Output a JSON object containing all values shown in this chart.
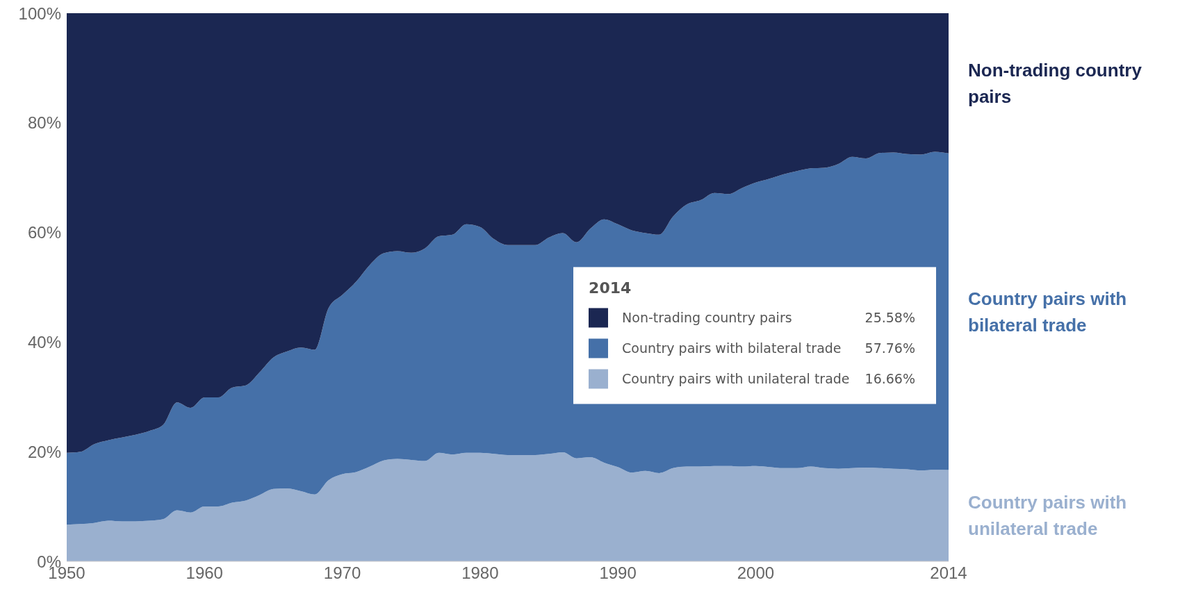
{
  "chart_data": {
    "type": "area",
    "stacked": true,
    "x": [
      1950,
      1951,
      1952,
      1953,
      1954,
      1955,
      1956,
      1957,
      1958,
      1959,
      1960,
      1961,
      1962,
      1963,
      1964,
      1965,
      1966,
      1967,
      1968,
      1969,
      1970,
      1971,
      1972,
      1973,
      1974,
      1975,
      1976,
      1977,
      1978,
      1979,
      1980,
      1981,
      1982,
      1983,
      1984,
      1985,
      1986,
      1987,
      1988,
      1989,
      1990,
      1991,
      1992,
      1993,
      1994,
      1995,
      1996,
      1997,
      1998,
      1999,
      2000,
      2001,
      2002,
      2003,
      2004,
      2005,
      2006,
      2007,
      2008,
      2009,
      2010,
      2011,
      2012,
      2013,
      2014
    ],
    "series": [
      {
        "name": "Country pairs with unilateral trade",
        "color": "#9ab0cf",
        "values": [
          6.7,
          6.8,
          7,
          7.4,
          7.3,
          7.3,
          7.4,
          7.7,
          9.3,
          8.9,
          10,
          10,
          10.7,
          11.1,
          12.1,
          13.2,
          13.3,
          12.8,
          12.2,
          14.8,
          15.9,
          16.3,
          17.3,
          18.4,
          18.7,
          18.5,
          18.3,
          19.8,
          19.5,
          19.8,
          19.8,
          19.6,
          19.4,
          19.4,
          19.4,
          19.6,
          19.9,
          18.8,
          19,
          18,
          17.2,
          16.2,
          16.5,
          16.1,
          17,
          17.3,
          17.3,
          17.4,
          17.4,
          17.3,
          17.4,
          17.2,
          17,
          17,
          17.3,
          17,
          16.9,
          17,
          17.1,
          17,
          16.9,
          16.8,
          16.6,
          16.7,
          16.66
        ],
        "value_labels": [
          null,
          null,
          null,
          null,
          null,
          null,
          null,
          null,
          null,
          null,
          null,
          null,
          null,
          null,
          null,
          null,
          null,
          null,
          null,
          null,
          null,
          null,
          null,
          null,
          null,
          null,
          null,
          null,
          null,
          null,
          null,
          null,
          null,
          null,
          null,
          null,
          null,
          null,
          null,
          null,
          null,
          null,
          null,
          null,
          null,
          null,
          null,
          null,
          null,
          null,
          null,
          null,
          null,
          null,
          null,
          null,
          null,
          null,
          null,
          null,
          null,
          null,
          null,
          null,
          null
        ]
      },
      {
        "name": "Country pairs with bilateral trade",
        "color": "#4570a8",
        "values": [
          13.1,
          13.2,
          14.4,
          14.7,
          15.3,
          15.8,
          16.4,
          17.2,
          19.7,
          19.1,
          19.9,
          19.9,
          21,
          21,
          22.4,
          24,
          25,
          26.2,
          26.4,
          31.4,
          32.7,
          34.7,
          36.8,
          37.8,
          37.9,
          37.8,
          38.8,
          39.5,
          40.1,
          41.7,
          41.2,
          39.2,
          38.3,
          38.3,
          38.3,
          39.5,
          40,
          39.4,
          41.7,
          44.4,
          44.3,
          44.2,
          43.4,
          43.5,
          45.9,
          47.8,
          48.6,
          49.8,
          49.6,
          50.8,
          51.7,
          52.6,
          53.6,
          54.2,
          54.4,
          54.8,
          55.6,
          56.8,
          56.4,
          57.5,
          57.7,
          57.5,
          57.6,
          58,
          57.76
        ],
        "value_labels": [
          null,
          null,
          null,
          null,
          null,
          null,
          null,
          null,
          null,
          null,
          null,
          null,
          null,
          null,
          null,
          null,
          null,
          null,
          null,
          null,
          null,
          null,
          null,
          null,
          null,
          null,
          null,
          null,
          null,
          null,
          null,
          null,
          null,
          null,
          null,
          null,
          null,
          null,
          null,
          null,
          null,
          null,
          null,
          null,
          null,
          null,
          null,
          null,
          null,
          null,
          null,
          null,
          null,
          null,
          null,
          null,
          null,
          null,
          null,
          null,
          null,
          null,
          null,
          null,
          null
        ]
      },
      {
        "name": "Non-trading country pairs",
        "color": "#1b2752",
        "values": [
          80.2,
          80,
          78.6,
          77.9,
          77.4,
          76.9,
          76.2,
          75.1,
          71,
          72,
          70.1,
          70.1,
          68.3,
          67.9,
          65.5,
          62.8,
          61.7,
          61,
          61.4,
          53.8,
          51.4,
          49,
          45.9,
          43.8,
          43.4,
          43.7,
          42.9,
          40.7,
          40.4,
          38.5,
          39,
          41.2,
          42.3,
          42.3,
          42.3,
          40.9,
          40.1,
          41.8,
          39.3,
          37.6,
          38.5,
          39.6,
          40.1,
          40.4,
          37.1,
          34.9,
          34.1,
          32.8,
          33,
          31.9,
          30.9,
          30.2,
          29.4,
          28.8,
          28.3,
          28.2,
          27.5,
          26.2,
          26.5,
          25.5,
          25.4,
          25.7,
          25.8,
          25.3,
          25.58
        ],
        "value_labels": [
          null,
          null,
          null,
          null,
          null,
          null,
          null,
          null,
          null,
          null,
          null,
          null,
          null,
          null,
          null,
          null,
          null,
          null,
          null,
          null,
          null,
          null,
          null,
          null,
          null,
          null,
          null,
          null,
          null,
          null,
          null,
          null,
          null,
          null,
          null,
          null,
          null,
          null,
          null,
          null,
          null,
          null,
          null,
          null,
          null,
          null,
          null,
          null,
          null,
          null,
          null,
          null,
          null,
          null,
          null,
          null,
          null,
          null,
          null,
          null,
          null,
          null,
          null,
          null,
          null
        ]
      }
    ],
    "xlim": [
      1950,
      2014
    ],
    "xticks": [
      1950,
      1960,
      1970,
      1980,
      1990,
      2000,
      2014
    ],
    "ylim": [
      0,
      100
    ],
    "yticks": [
      {
        "value": 0,
        "label": "0%"
      },
      {
        "value": 20,
        "label": "20%"
      },
      {
        "value": 40,
        "label": "40%"
      },
      {
        "value": 60,
        "label": "60%"
      },
      {
        "value": 80,
        "label": "80%"
      },
      {
        "value": 100,
        "label": "100%"
      }
    ],
    "grid": false,
    "legend": "right",
    "legend_title": "2014",
    "annotations": [
      "25.58%",
      "57.76%",
      "16.66%"
    ]
  }
}
